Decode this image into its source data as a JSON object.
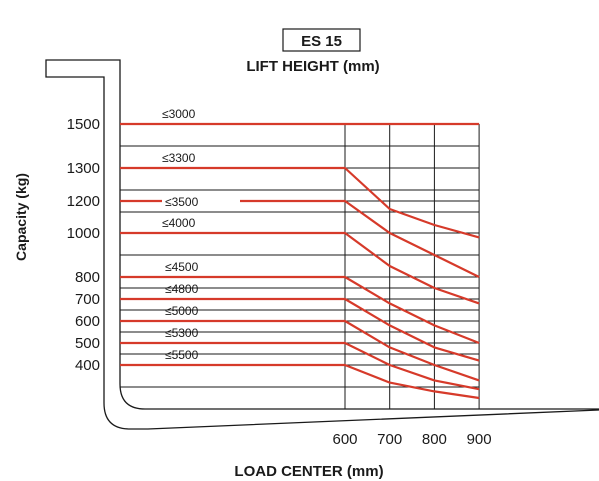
{
  "chart_data": {
    "type": "line",
    "model": "ES 15",
    "title": "LIFT HEIGHT (mm)",
    "xlabel": "LOAD CENTER (mm)",
    "ylabel": "Capacity (kg)",
    "x_ticks": [
      600,
      700,
      800,
      900
    ],
    "y_ticks": [
      1500,
      1300,
      1200,
      1000,
      800,
      700,
      600,
      500,
      400
    ],
    "xlim": [
      600,
      900
    ],
    "grid": true,
    "color": "#d63a2a",
    "series": [
      {
        "name": "≤3000",
        "x": [
          600,
          900
        ],
        "y": [
          1500,
          1500
        ]
      },
      {
        "name": "≤3300",
        "x": [
          600,
          700,
          800,
          900
        ],
        "y": [
          1300,
          1150,
          1050,
          980
        ]
      },
      {
        "name": "≤3500",
        "x": [
          600,
          700,
          800,
          900
        ],
        "y": [
          1200,
          1000,
          900,
          800
        ]
      },
      {
        "name": "≤4000",
        "x": [
          600,
          700,
          800,
          900
        ],
        "y": [
          1000,
          850,
          750,
          680
        ]
      },
      {
        "name": "≤4500",
        "x": [
          600,
          700,
          800,
          900
        ],
        "y": [
          800,
          680,
          580,
          500
        ]
      },
      {
        "name": "≤4800",
        "x": [
          600,
          700,
          800,
          900
        ],
        "y": [
          700,
          580,
          480,
          420
        ]
      },
      {
        "name": "≤5000",
        "x": [
          600,
          700,
          800,
          900
        ],
        "y": [
          600,
          480,
          400,
          330
        ]
      },
      {
        "name": "≤5300",
        "x": [
          600,
          700,
          800,
          900
        ],
        "y": [
          500,
          400,
          330,
          290
        ]
      },
      {
        "name": "≤5500",
        "x": [
          600,
          700,
          800,
          900
        ],
        "y": [
          400,
          320,
          280,
          250
        ]
      }
    ]
  }
}
